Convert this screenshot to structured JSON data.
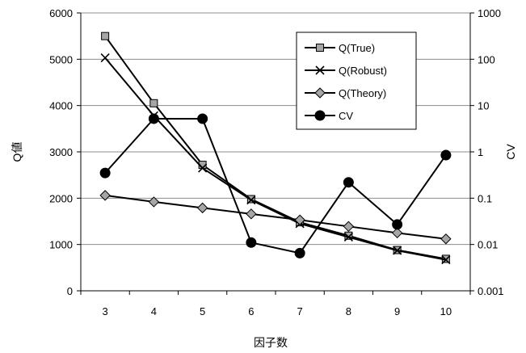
{
  "chart_data": {
    "type": "line",
    "categories": [
      "3",
      "4",
      "5",
      "6",
      "7",
      "8",
      "9",
      "10"
    ],
    "xlabel": "因子数",
    "ylabel": "Q値",
    "y2label": "CV",
    "ylim": [
      0,
      6000
    ],
    "yticks": [
      "0",
      "1000",
      "2000",
      "3000",
      "4000",
      "5000",
      "6000"
    ],
    "y2lim": [
      0.001,
      1000
    ],
    "y2scale": "log",
    "y2ticks": [
      "0.001",
      "0.01",
      "0.1",
      "1",
      "10",
      "100",
      "1000"
    ],
    "grid": "horizontal",
    "legend_position": "top-right",
    "series": [
      {
        "name": "Q(True)",
        "axis": "left",
        "marker": "square",
        "color": "#000000",
        "marker_fill": "#a6a6a6",
        "values": [
          5500,
          4050,
          2720,
          1980,
          1480,
          1190,
          880,
          690
        ]
      },
      {
        "name": "Q(Robust)",
        "axis": "left",
        "marker": "x",
        "color": "#000000",
        "marker_fill": "#000000",
        "values": [
          5030,
          3780,
          2650,
          1960,
          1450,
          1160,
          870,
          670
        ]
      },
      {
        "name": "Q(Theory)",
        "axis": "left",
        "marker": "diamond",
        "color": "#000000",
        "marker_fill": "#a6a6a6",
        "values": [
          2060,
          1920,
          1790,
          1660,
          1530,
          1390,
          1250,
          1120
        ]
      },
      {
        "name": "CV",
        "axis": "right",
        "marker": "circle",
        "color": "#000000",
        "marker_fill": "#000000",
        "values": [
          0.35,
          5.2,
          5.2,
          0.011,
          0.0065,
          0.22,
          0.027,
          0.85
        ]
      }
    ]
  }
}
